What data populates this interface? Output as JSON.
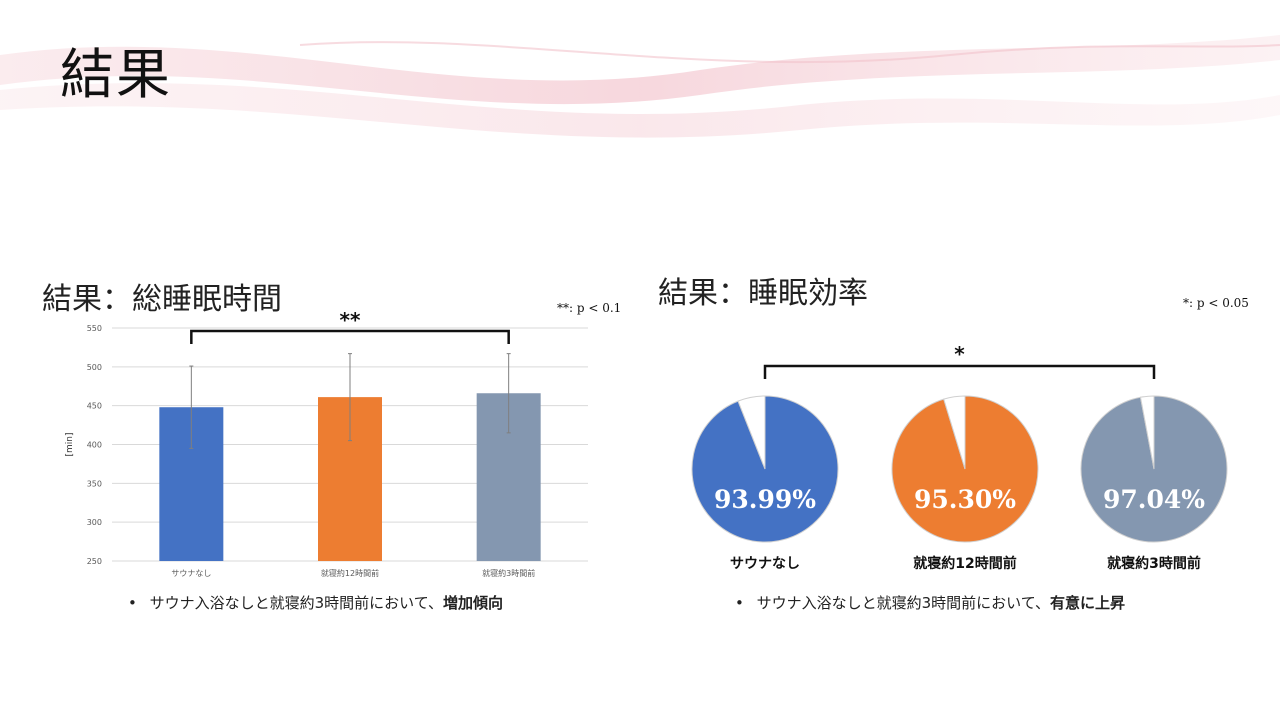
{
  "slide": {
    "title": "結果"
  },
  "left": {
    "section_title": "結果：総睡眠時間",
    "significance_note": "**: p < 0.1",
    "significance_mark": "**",
    "bullet_text": "サウナ入浴なしと就寝約3時間前において、",
    "bullet_emphasis": "増加傾向"
  },
  "right": {
    "section_title": "結果：睡眠効率",
    "significance_note": "*: p < 0.05",
    "significance_mark": "*",
    "bullet_text": "サウナ入浴なしと就寝約3時間前において、",
    "bullet_emphasis": "有意に上昇"
  },
  "chart_data": [
    {
      "type": "bar",
      "ylabel": "[min]",
      "categories": [
        "サウナなし",
        "就寝約12時間前",
        "就寝約3時間前"
      ],
      "values": [
        448,
        461,
        466
      ],
      "error_bars": [
        53,
        56,
        51
      ],
      "colors": [
        "#4472C4",
        "#ED7D31",
        "#8497B0"
      ],
      "ylim": [
        250,
        550
      ],
      "yticks": [
        250,
        300,
        350,
        400,
        450,
        500,
        550
      ],
      "grid": true,
      "significance": {
        "from": "サウナなし",
        "to": "就寝約3時間前",
        "mark": "**"
      }
    },
    {
      "type": "pie",
      "charts": [
        {
          "category": "サウナなし",
          "value": 93.99,
          "label": "93.99%",
          "color": "#4472C4"
        },
        {
          "category": "就寝約12時間前",
          "value": 95.3,
          "label": "95.30%",
          "color": "#ED7D31"
        },
        {
          "category": "就寝約3時間前",
          "value": 97.04,
          "label": "97.04%",
          "color": "#8497B0"
        }
      ],
      "remainder_color": "#ffffff",
      "significance": {
        "from": "サウナなし",
        "to": "就寝約3時間前",
        "mark": "*"
      }
    }
  ]
}
